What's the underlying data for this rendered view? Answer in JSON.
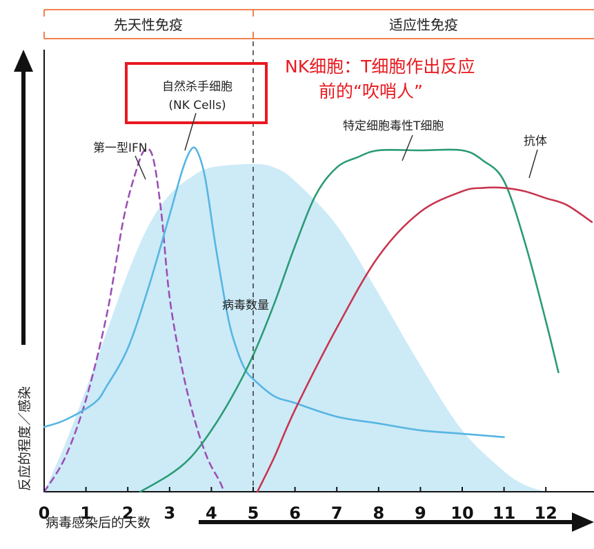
{
  "chart_data": {
    "type": "line",
    "title": "",
    "xlabel": "病毒感染后的天数",
    "ylabel": "反应的程度／感染",
    "xlim": [
      0,
      13.1
    ],
    "ylim": [
      0,
      1
    ],
    "x_ticks": [
      0,
      1,
      2,
      3,
      4,
      5,
      6,
      7,
      8,
      9,
      10,
      11,
      12
    ],
    "divider_x": 5,
    "phases": [
      {
        "label": "先天性免疫",
        "x_range": [
          0,
          5
        ]
      },
      {
        "label": "适应性免疫",
        "x_range": [
          5,
          13.1
        ]
      }
    ],
    "highlight_note": "NK细胞：T细胞作出反应前的“吹哨人”",
    "highlight_note_lines": [
      "NK细胞：T细胞作出反应",
      "前的“吹哨人”"
    ],
    "series": [
      {
        "name": "病毒数量",
        "kind": "area",
        "color": "#cdeaf7",
        "points": [
          [
            0,
            0
          ],
          [
            0.5,
            0.14
          ],
          [
            1,
            0.3
          ],
          [
            1.5,
            0.47
          ],
          [
            2,
            0.64
          ],
          [
            2.5,
            0.78
          ],
          [
            3,
            0.87
          ],
          [
            3.5,
            0.92
          ],
          [
            4,
            0.95
          ],
          [
            5,
            0.96
          ],
          [
            5.5,
            0.95
          ],
          [
            6,
            0.91
          ],
          [
            7,
            0.78
          ],
          [
            8,
            0.58
          ],
          [
            9,
            0.37
          ],
          [
            10,
            0.18
          ],
          [
            11,
            0.06
          ],
          [
            11.5,
            0.02
          ],
          [
            12,
            0
          ]
        ]
      },
      {
        "name": "第一型IFN",
        "kind": "dashed",
        "color": "#9b4fb5",
        "points": [
          [
            0,
            0
          ],
          [
            0.5,
            0.1
          ],
          [
            1,
            0.27
          ],
          [
            1.5,
            0.52
          ],
          [
            1.9,
            0.8
          ],
          [
            2.2,
            0.94
          ],
          [
            2.4,
            1.0
          ],
          [
            2.6,
            0.98
          ],
          [
            2.8,
            0.82
          ],
          [
            3,
            0.57
          ],
          [
            3.3,
            0.36
          ],
          [
            3.6,
            0.21
          ],
          [
            3.9,
            0.1
          ],
          [
            4.2,
            0.03
          ],
          [
            4.3,
            0
          ]
        ]
      },
      {
        "name": "自然杀手细胞\n(NK Cells)",
        "kind": "line",
        "color": "#55b5e2",
        "points": [
          [
            0,
            0.19
          ],
          [
            0.5,
            0.21
          ],
          [
            1.2,
            0.26
          ],
          [
            1.5,
            0.31
          ],
          [
            2,
            0.42
          ],
          [
            2.5,
            0.6
          ],
          [
            3,
            0.81
          ],
          [
            3.3,
            0.94
          ],
          [
            3.5,
            1.0
          ],
          [
            3.65,
            1.0
          ],
          [
            3.85,
            0.92
          ],
          [
            4.1,
            0.72
          ],
          [
            4.4,
            0.51
          ],
          [
            4.6,
            0.42
          ],
          [
            4.8,
            0.36
          ],
          [
            5,
            0.33
          ],
          [
            5.5,
            0.28
          ],
          [
            6,
            0.26
          ],
          [
            7,
            0.22
          ],
          [
            8,
            0.2
          ],
          [
            9,
            0.18
          ],
          [
            10,
            0.17
          ],
          [
            11,
            0.16
          ]
        ]
      },
      {
        "name": "特定细胞毒性T细胞",
        "kind": "line",
        "color": "#2a9b73",
        "points": [
          [
            2.3,
            0
          ],
          [
            3,
            0.05
          ],
          [
            3.5,
            0.1
          ],
          [
            4,
            0.18
          ],
          [
            4.5,
            0.28
          ],
          [
            5,
            0.4
          ],
          [
            5.5,
            0.55
          ],
          [
            6,
            0.72
          ],
          [
            6.5,
            0.87
          ],
          [
            7,
            0.95
          ],
          [
            7.5,
            0.98
          ],
          [
            8,
            1.0
          ],
          [
            9,
            1.0
          ],
          [
            10,
            1.0
          ],
          [
            10.5,
            0.97
          ],
          [
            11,
            0.91
          ],
          [
            11.5,
            0.73
          ],
          [
            12,
            0.5
          ],
          [
            12.3,
            0.35
          ]
        ]
      },
      {
        "name": "抗体",
        "kind": "line",
        "color": "#c8344e",
        "points": [
          [
            5.1,
            0
          ],
          [
            5.5,
            0.1
          ],
          [
            6,
            0.24
          ],
          [
            7,
            0.48
          ],
          [
            8,
            0.69
          ],
          [
            9,
            0.82
          ],
          [
            10,
            0.88
          ],
          [
            10.5,
            0.89
          ],
          [
            11,
            0.89
          ],
          [
            11.5,
            0.88
          ],
          [
            12,
            0.86
          ],
          [
            12.5,
            0.84
          ],
          [
            13.1,
            0.79
          ]
        ]
      }
    ]
  }
}
